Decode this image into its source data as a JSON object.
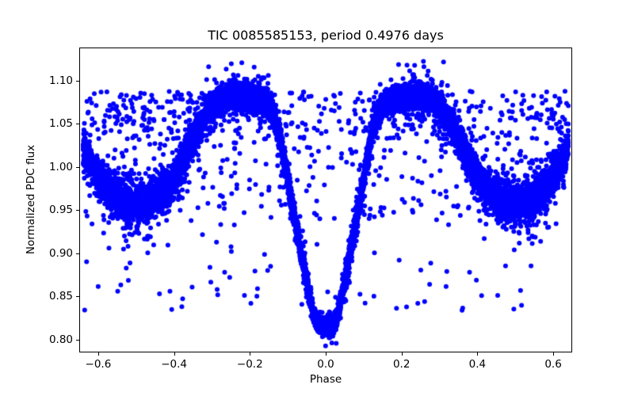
{
  "chart_data": {
    "type": "scatter",
    "title": "TIC 0085585153, period 0.4976 days",
    "xlabel": "Phase",
    "ylabel": "Normalized PDC flux",
    "xlim": [
      -0.65,
      0.65
    ],
    "ylim": [
      0.7853,
      1.1385
    ],
    "xticks": [
      -0.6,
      -0.4,
      -0.2,
      0.0,
      0.2,
      0.4,
      0.6
    ],
    "xtick_labels": [
      "−0.6",
      "−0.4",
      "−0.2",
      "0.0",
      "0.2",
      "0.4",
      "0.6"
    ],
    "yticks": [
      0.8,
      0.85,
      0.9,
      0.95,
      1.0,
      1.05,
      1.1
    ],
    "ytick_labels": [
      "0.80",
      "0.85",
      "0.90",
      "0.95",
      "1.00",
      "1.05",
      "1.10"
    ],
    "grid": false,
    "legend": null,
    "marker": {
      "color": "#0000ff",
      "radius_px": 3.0
    },
    "model": {
      "comment_fields": {
        "primary_eclipse": {
          "phase": 0.0,
          "min_flux": 0.813
        },
        "secondary_eclipse": {
          "phase": 0.5,
          "min_flux": 0.958
        },
        "maxima": {
          "phases": [
            -0.25,
            0.25
          ],
          "flux": 1.082
        }
      },
      "phase_fold_range": [
        -0.64,
        0.64
      ],
      "folded_curve_phase_flux": [
        [
          0.0,
          0.813
        ],
        [
          0.01,
          0.8145
        ],
        [
          0.02,
          0.819
        ],
        [
          0.032,
          0.829
        ],
        [
          0.045,
          0.856
        ],
        [
          0.06,
          0.89
        ],
        [
          0.075,
          0.9245
        ],
        [
          0.09,
          0.96
        ],
        [
          0.105,
          0.998
        ],
        [
          0.12,
          1.034
        ],
        [
          0.135,
          1.059
        ],
        [
          0.15,
          1.0705
        ],
        [
          0.165,
          1.0765
        ],
        [
          0.185,
          1.0795
        ],
        [
          0.215,
          1.0815
        ],
        [
          0.25,
          1.082
        ],
        [
          0.285,
          1.0765
        ],
        [
          0.315,
          1.062
        ],
        [
          0.345,
          1.038
        ],
        [
          0.375,
          1.009
        ],
        [
          0.405,
          0.985
        ],
        [
          0.435,
          0.97
        ],
        [
          0.465,
          0.9605
        ],
        [
          0.5,
          0.958
        ]
      ],
      "band": {
        "n": 9500,
        "sigma_base": 0.0068,
        "sigma_eclipse_bottom": 0.005,
        "sigma_secondary_extra": 0.0048,
        "wide_fraction": 0.15
      },
      "cloud_upper": {
        "n": 420,
        "flux_range": [
          1.032,
          1.088
        ]
      },
      "cloud_mid": {
        "n": 260,
        "flux_range": [
          0.93,
          1.035
        ]
      },
      "low_outliers": {
        "n": 70,
        "flux_range": [
          0.834,
          0.925
        ]
      },
      "high_outliers": {
        "n": 16,
        "flux_range": [
          1.088,
          1.122
        ],
        "phase_centers": [
          -0.25,
          0.25
        ],
        "phase_sigma": 0.05,
        "right_fraction": 0.6
      },
      "seed": 1337
    }
  }
}
